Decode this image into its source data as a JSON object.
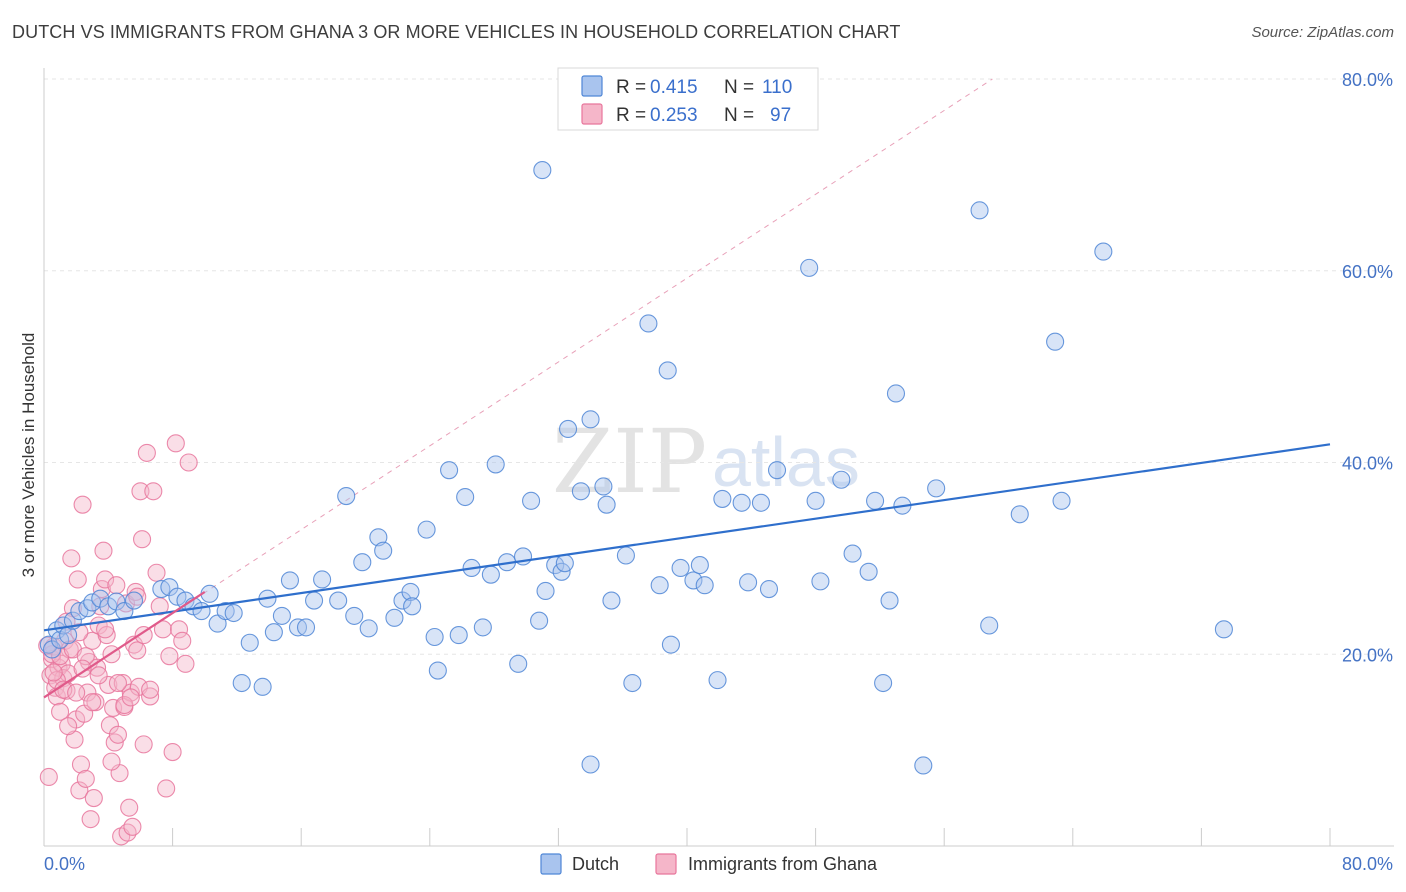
{
  "title": "DUTCH VS IMMIGRANTS FROM GHANA 3 OR MORE VEHICLES IN HOUSEHOLD CORRELATION CHART",
  "source": "Source: ZipAtlas.com",
  "watermark": {
    "zip": "ZIP",
    "atlas": "atlas"
  },
  "legend": {
    "rows": [
      {
        "r_label": "R =",
        "r_value": "0.415",
        "n_label": "N =",
        "n_value": "110",
        "color": "#a9c4ee"
      },
      {
        "r_label": "R =",
        "r_value": "0.253",
        "n_label": "N =",
        "n_value": "97",
        "color": "#f5b6c9"
      }
    ]
  },
  "bottom_legend": [
    {
      "label": "Dutch",
      "color": "#a9c4ee"
    },
    {
      "label": "Immigrants from Ghana",
      "color": "#f5b6c9"
    }
  ],
  "chart_data": {
    "type": "scatter",
    "title": "DUTCH VS IMMIGRANTS FROM GHANA 3 OR MORE VEHICLES IN HOUSEHOLD CORRELATION CHART",
    "xlabel": "",
    "ylabel": "3 or more Vehicles in Household",
    "xlim": [
      0,
      80
    ],
    "ylim": [
      0,
      80
    ],
    "x_tick_labels": [
      "0.0%",
      "80.0%"
    ],
    "y_tick_labels": [
      "20.0%",
      "40.0%",
      "60.0%",
      "80.0%"
    ],
    "y_ticks": [
      20,
      40,
      60,
      80
    ],
    "grid": true,
    "legend_position": "top-center",
    "colors": {
      "dutch": "#4f86d6",
      "dutch_fill": "#a9c4ee",
      "ghana": "#e8769c",
      "ghana_fill": "#f5b6c9",
      "trend_dutch": "#2f6fcc",
      "trend_ghana": "#e05a8a",
      "diagonal": "#e8a0b8"
    },
    "series": [
      {
        "name": "Dutch",
        "points": [
          [
            0.3,
            21.0
          ],
          [
            0.5,
            20.5
          ],
          [
            0.8,
            22.5
          ],
          [
            1.0,
            21.5
          ],
          [
            1.2,
            23.0
          ],
          [
            1.5,
            22.0
          ],
          [
            1.8,
            23.5
          ],
          [
            2.2,
            24.5
          ],
          [
            2.7,
            24.8
          ],
          [
            3.0,
            25.4
          ],
          [
            3.5,
            25.8
          ],
          [
            4.0,
            25.0
          ],
          [
            4.5,
            25.5
          ],
          [
            5.0,
            24.5
          ],
          [
            5.6,
            25.6
          ],
          [
            7.3,
            26.8
          ],
          [
            7.8,
            27.0
          ],
          [
            8.3,
            26.0
          ],
          [
            8.8,
            25.6
          ],
          [
            9.3,
            25.0
          ],
          [
            9.8,
            24.5
          ],
          [
            10.3,
            26.3
          ],
          [
            10.8,
            23.2
          ],
          [
            11.3,
            24.5
          ],
          [
            11.8,
            24.3
          ],
          [
            12.8,
            21.2
          ],
          [
            12.3,
            17.0
          ],
          [
            13.6,
            16.6
          ],
          [
            13.9,
            25.8
          ],
          [
            14.3,
            22.3
          ],
          [
            14.8,
            24.0
          ],
          [
            15.3,
            27.7
          ],
          [
            15.8,
            22.8
          ],
          [
            16.3,
            22.8
          ],
          [
            16.8,
            25.6
          ],
          [
            17.3,
            27.8
          ],
          [
            18.3,
            25.6
          ],
          [
            18.8,
            36.5
          ],
          [
            19.3,
            24.0
          ],
          [
            19.8,
            29.6
          ],
          [
            20.2,
            22.7
          ],
          [
            20.8,
            32.2
          ],
          [
            21.1,
            30.8
          ],
          [
            21.8,
            23.8
          ],
          [
            22.3,
            25.6
          ],
          [
            22.8,
            26.5
          ],
          [
            22.9,
            25.0
          ],
          [
            23.8,
            33.0
          ],
          [
            24.3,
            21.8
          ],
          [
            24.5,
            18.3
          ],
          [
            25.2,
            39.2
          ],
          [
            25.8,
            22.0
          ],
          [
            26.2,
            36.4
          ],
          [
            26.6,
            29.0
          ],
          [
            27.3,
            22.8
          ],
          [
            27.8,
            28.3
          ],
          [
            28.1,
            39.8
          ],
          [
            28.8,
            29.6
          ],
          [
            29.5,
            19.0
          ],
          [
            29.8,
            30.2
          ],
          [
            30.3,
            36.0
          ],
          [
            30.8,
            23.5
          ],
          [
            31.2,
            26.6
          ],
          [
            31.0,
            70.5
          ],
          [
            31.8,
            29.3
          ],
          [
            32.2,
            28.6
          ],
          [
            32.4,
            29.5
          ],
          [
            32.6,
            43.5
          ],
          [
            33.4,
            37.0
          ],
          [
            34.0,
            44.5
          ],
          [
            34.0,
            8.5
          ],
          [
            34.8,
            37.5
          ],
          [
            35.0,
            35.6
          ],
          [
            35.3,
            25.6
          ],
          [
            36.2,
            30.3
          ],
          [
            36.6,
            17.0
          ],
          [
            37.6,
            54.5
          ],
          [
            38.3,
            27.2
          ],
          [
            38.8,
            49.6
          ],
          [
            39.0,
            21.0
          ],
          [
            39.6,
            29.0
          ],
          [
            40.4,
            27.7
          ],
          [
            40.8,
            29.3
          ],
          [
            41.1,
            27.2
          ],
          [
            41.9,
            17.3
          ],
          [
            42.2,
            36.2
          ],
          [
            43.4,
            35.8
          ],
          [
            43.8,
            27.5
          ],
          [
            44.6,
            35.8
          ],
          [
            45.1,
            26.8
          ],
          [
            45.6,
            39.2
          ],
          [
            47.6,
            60.3
          ],
          [
            48.0,
            36.0
          ],
          [
            48.3,
            27.6
          ],
          [
            49.6,
            38.2
          ],
          [
            50.3,
            30.5
          ],
          [
            51.3,
            28.6
          ],
          [
            51.7,
            36.0
          ],
          [
            52.2,
            17.0
          ],
          [
            52.6,
            25.6
          ],
          [
            53.0,
            47.2
          ],
          [
            53.4,
            35.5
          ],
          [
            54.7,
            8.4
          ],
          [
            55.5,
            37.3
          ],
          [
            58.2,
            66.3
          ],
          [
            58.8,
            23.0
          ],
          [
            60.7,
            34.6
          ],
          [
            62.9,
            52.6
          ],
          [
            63.3,
            36.0
          ],
          [
            65.9,
            62.0
          ],
          [
            73.4,
            22.6
          ]
        ]
      },
      {
        "name": "Immigrants from Ghana",
        "points": [
          [
            0.3,
            7.2
          ],
          [
            0.4,
            17.8
          ],
          [
            0.5,
            19.5
          ],
          [
            0.6,
            20.8
          ],
          [
            0.7,
            16.5
          ],
          [
            0.8,
            15.6
          ],
          [
            0.9,
            18.6
          ],
          [
            1.0,
            14.0
          ],
          [
            1.1,
            19.0
          ],
          [
            1.2,
            17.5
          ],
          [
            1.3,
            21.4
          ],
          [
            1.4,
            16.2
          ],
          [
            1.5,
            18.0
          ],
          [
            1.6,
            20.5
          ],
          [
            1.7,
            30.0
          ],
          [
            1.8,
            24.8
          ],
          [
            1.9,
            11.1
          ],
          [
            2.0,
            13.2
          ],
          [
            2.1,
            27.8
          ],
          [
            2.2,
            5.8
          ],
          [
            2.3,
            8.5
          ],
          [
            2.4,
            35.6
          ],
          [
            2.5,
            13.8
          ],
          [
            2.6,
            7.0
          ],
          [
            2.7,
            16.0
          ],
          [
            2.8,
            19.2
          ],
          [
            2.9,
            2.8
          ],
          [
            3.0,
            21.4
          ],
          [
            3.1,
            5.0
          ],
          [
            3.2,
            15.0
          ],
          [
            3.3,
            18.6
          ],
          [
            3.4,
            23.0
          ],
          [
            3.5,
            25.0
          ],
          [
            3.6,
            26.8
          ],
          [
            3.7,
            30.8
          ],
          [
            3.8,
            27.8
          ],
          [
            3.9,
            22.0
          ],
          [
            4.0,
            16.8
          ],
          [
            4.1,
            12.6
          ],
          [
            4.2,
            20.0
          ],
          [
            4.3,
            14.4
          ],
          [
            4.4,
            10.8
          ],
          [
            4.5,
            27.2
          ],
          [
            4.6,
            11.6
          ],
          [
            4.7,
            7.6
          ],
          [
            4.8,
            1.0
          ],
          [
            4.9,
            17.0
          ],
          [
            5.0,
            14.5
          ],
          [
            5.1,
            25.3
          ],
          [
            5.2,
            1.4
          ],
          [
            5.3,
            4.0
          ],
          [
            5.4,
            16.0
          ],
          [
            5.5,
            2.0
          ],
          [
            5.6,
            21.0
          ],
          [
            5.7,
            26.5
          ],
          [
            5.8,
            20.4
          ],
          [
            5.9,
            16.6
          ],
          [
            6.0,
            37.0
          ],
          [
            6.1,
            32.0
          ],
          [
            6.2,
            10.6
          ],
          [
            6.4,
            41.0
          ],
          [
            6.6,
            15.6
          ],
          [
            6.8,
            37.0
          ],
          [
            7.0,
            28.5
          ],
          [
            7.2,
            25.0
          ],
          [
            7.4,
            22.6
          ],
          [
            7.6,
            6.0
          ],
          [
            7.8,
            19.8
          ],
          [
            8.0,
            9.8
          ],
          [
            8.2,
            42.0
          ],
          [
            8.4,
            22.6
          ],
          [
            8.6,
            21.4
          ],
          [
            8.8,
            19.0
          ],
          [
            9.0,
            40.0
          ],
          [
            0.5,
            20.0
          ],
          [
            0.8,
            17.3
          ],
          [
            1.0,
            19.8
          ],
          [
            1.2,
            16.3
          ],
          [
            1.5,
            12.5
          ],
          [
            1.8,
            20.5
          ],
          [
            2.2,
            22.3
          ],
          [
            2.6,
            19.8
          ],
          [
            3.0,
            15.0
          ],
          [
            3.4,
            17.8
          ],
          [
            3.8,
            22.6
          ],
          [
            4.2,
            8.8
          ],
          [
            4.6,
            17.0
          ],
          [
            5.0,
            14.7
          ],
          [
            5.4,
            15.5
          ],
          [
            5.8,
            26.0
          ],
          [
            6.2,
            22.0
          ],
          [
            6.6,
            16.3
          ],
          [
            0.2,
            20.9
          ],
          [
            0.6,
            18.1
          ],
          [
            1.4,
            23.4
          ],
          [
            2.0,
            16.0
          ],
          [
            2.4,
            18.5
          ]
        ]
      }
    ],
    "trend_lines": [
      {
        "name": "Dutch",
        "x": [
          0,
          80
        ],
        "y": [
          22.5,
          41.9
        ]
      },
      {
        "name": "Immigrants from Ghana",
        "x": [
          0,
          10
        ],
        "y": [
          15.5,
          26.5
        ]
      }
    ],
    "reference_line": {
      "x": [
        0,
        59
      ],
      "y": [
        15.5,
        80
      ]
    }
  }
}
